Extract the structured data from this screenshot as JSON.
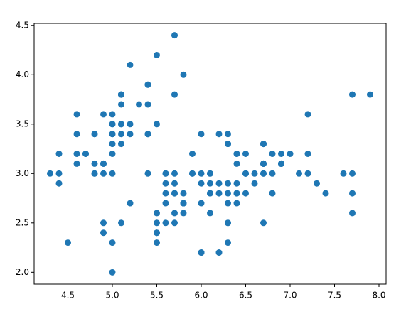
{
  "chart_data": {
    "type": "scatter",
    "color": "#1f77b4",
    "x": [
      5.1,
      4.9,
      4.7,
      4.6,
      5.0,
      5.4,
      4.6,
      5.0,
      4.4,
      4.9,
      5.4,
      4.8,
      4.8,
      4.3,
      5.8,
      5.7,
      5.4,
      5.1,
      5.7,
      5.1,
      5.4,
      5.1,
      4.6,
      5.1,
      4.8,
      5.0,
      5.0,
      5.2,
      5.2,
      4.7,
      4.8,
      5.4,
      5.2,
      5.5,
      4.9,
      5.0,
      5.5,
      4.9,
      4.4,
      5.1,
      5.0,
      4.5,
      4.4,
      5.0,
      5.1,
      4.8,
      5.1,
      4.6,
      5.3,
      5.0,
      7.0,
      6.4,
      6.9,
      5.5,
      6.5,
      5.7,
      6.3,
      4.9,
      6.6,
      5.2,
      5.0,
      5.9,
      6.0,
      6.1,
      5.6,
      6.7,
      5.6,
      5.8,
      6.2,
      5.6,
      5.9,
      6.1,
      6.3,
      6.1,
      6.4,
      6.6,
      6.8,
      6.7,
      6.0,
      5.7,
      5.5,
      5.5,
      5.8,
      6.0,
      5.4,
      6.0,
      6.7,
      6.3,
      5.6,
      5.5,
      5.5,
      6.1,
      5.8,
      5.0,
      5.6,
      5.7,
      5.7,
      6.2,
      5.1,
      5.7,
      6.3,
      5.8,
      7.1,
      6.3,
      6.5,
      7.6,
      4.9,
      7.3,
      6.7,
      7.2,
      6.5,
      6.4,
      6.8,
      5.7,
      5.8,
      6.4,
      6.5,
      7.7,
      7.7,
      6.0,
      6.9,
      5.6,
      7.7,
      6.3,
      6.7,
      7.2,
      6.2,
      6.1,
      6.4,
      7.2,
      7.4,
      7.9,
      6.4,
      6.3,
      6.1,
      7.7,
      6.3,
      6.4,
      6.0,
      6.9,
      6.7,
      6.9,
      5.8,
      6.8,
      6.7,
      6.7,
      6.3,
      6.5,
      6.2,
      5.9
    ],
    "values": [
      3.5,
      3.0,
      3.2,
      3.1,
      3.6,
      3.9,
      3.4,
      3.4,
      2.9,
      3.1,
      3.7,
      3.4,
      3.0,
      3.0,
      4.0,
      4.4,
      3.9,
      3.5,
      3.8,
      3.8,
      3.4,
      3.7,
      3.6,
      3.3,
      3.4,
      3.0,
      3.4,
      3.5,
      3.4,
      3.2,
      3.1,
      3.4,
      4.1,
      4.2,
      3.1,
      3.2,
      3.5,
      3.6,
      3.0,
      3.4,
      3.5,
      2.3,
      3.2,
      3.5,
      3.8,
      3.0,
      3.8,
      3.2,
      3.7,
      3.3,
      3.2,
      3.2,
      3.1,
      2.3,
      2.8,
      2.8,
      3.3,
      2.4,
      2.9,
      2.7,
      2.0,
      3.0,
      2.2,
      2.9,
      2.9,
      3.1,
      3.0,
      2.7,
      2.2,
      2.5,
      3.2,
      2.8,
      2.5,
      2.8,
      2.9,
      3.0,
      2.8,
      3.0,
      2.9,
      2.6,
      2.4,
      2.4,
      2.7,
      2.7,
      3.0,
      3.4,
      3.1,
      2.3,
      3.0,
      2.5,
      2.6,
      3.0,
      2.6,
      2.3,
      2.7,
      3.0,
      2.9,
      2.9,
      2.5,
      2.8,
      3.3,
      2.7,
      3.0,
      2.9,
      3.0,
      3.0,
      2.5,
      2.9,
      2.5,
      3.6,
      3.2,
      2.7,
      3.0,
      2.5,
      2.8,
      3.2,
      3.0,
      3.8,
      2.6,
      2.2,
      3.2,
      2.8,
      2.8,
      2.7,
      3.3,
      3.2,
      2.8,
      3.0,
      2.8,
      3.0,
      2.8,
      3.8,
      2.8,
      2.8,
      2.6,
      3.0,
      3.4,
      3.1,
      3.0,
      3.1,
      3.1,
      3.1,
      2.7,
      3.2,
      3.3,
      3.0,
      2.5,
      3.0,
      3.4,
      3.0
    ],
    "xlim": [
      4.12,
      8.08
    ],
    "xticks": [
      4.5,
      {
        "value": 5,
        "label": "5.0"
      },
      5.5,
      {
        "value": 6,
        "label": "6.0"
      },
      6.5,
      {
        "value": 7,
        "label": "7.0"
      },
      7.5,
      {
        "value": 8,
        "label": "8.0"
      }
    ],
    "ylim": [
      1.88,
      4.52
    ],
    "yticks": [
      {
        "value": 2,
        "label": "2.0"
      },
      2.5,
      {
        "value": 3,
        "label": "3.0"
      },
      3.5,
      {
        "value": 4,
        "label": "4.0"
      },
      4.5
    ],
    "grid": false
  }
}
